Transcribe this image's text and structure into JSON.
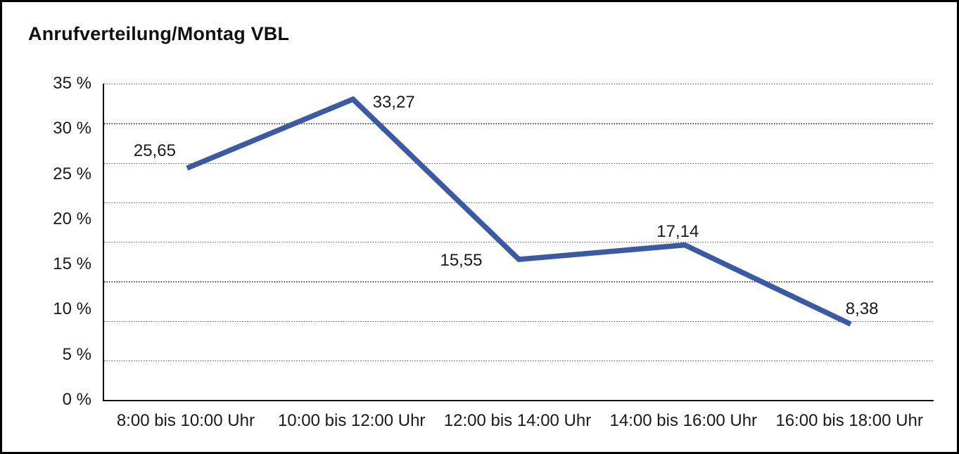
{
  "chart_data": {
    "type": "line",
    "title": "Anrufverteilung/Montag VBL",
    "categories": [
      "8:00 bis 10:00 Uhr",
      "10:00 bis 12:00 Uhr",
      "12:00 bis 14:00 Uhr",
      "14:00 bis 16:00 Uhr",
      "16:00 bis 18:00 Uhr"
    ],
    "values": [
      25.65,
      33.27,
      15.55,
      17.14,
      8.38
    ],
    "value_labels": [
      "25,65",
      "33,27",
      "15,55",
      "17,14",
      "8,38"
    ],
    "xlabel": "",
    "ylabel": "",
    "ylim": [
      0,
      35
    ],
    "ytick_labels": [
      "35 %",
      "30 %",
      "25 %",
      "20 %",
      "15 %",
      "10 %",
      "5 %",
      "0 %"
    ],
    "grid": {
      "horizontal": "dotted",
      "intervals": 8,
      "color": "#5a5a5a"
    },
    "legend": "none",
    "line_color": "#3A5AA5",
    "line_width": 7.5
  }
}
